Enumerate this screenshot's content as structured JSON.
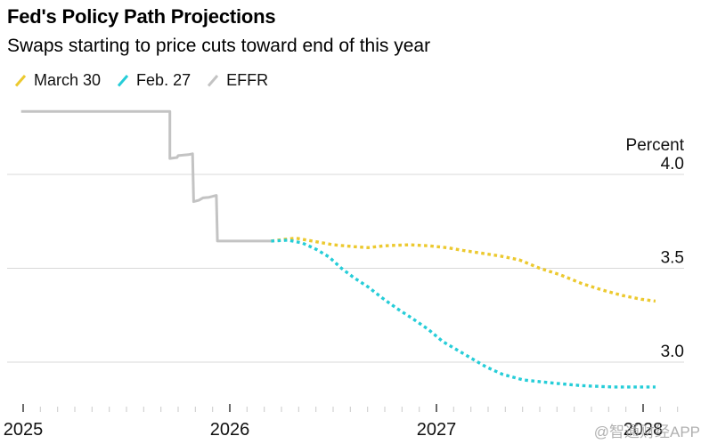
{
  "header": {
    "title": "Fed's Policy Path Projections",
    "subtitle": "Swaps starting to price cuts toward end of this year"
  },
  "legend": {
    "items": [
      {
        "label": "March 30",
        "color": "#ecc92f"
      },
      {
        "label": "Feb. 27",
        "color": "#26cdd8"
      },
      {
        "label": "EFFR",
        "color": "#c3c3c3"
      }
    ]
  },
  "watermark": "@智通财经APP",
  "colors": {
    "march30": "#ecc92f",
    "feb27": "#26cdd8",
    "effr": "#c3c3c3",
    "gridline": "#d8d8d8",
    "major_tick": "#3a3a3a",
    "minor_tick": "#c9c9c9",
    "axis_text": "#111111"
  },
  "chart_data": {
    "type": "line",
    "title": "Fed's Policy Path Projections",
    "subtitle": "Swaps starting to price cuts toward end of this year",
    "x_axis": {
      "unit": "year",
      "major_ticks": [
        2025,
        2026,
        2027,
        2028
      ],
      "minor_tick_interval_months": 1,
      "minor_tick_count": 39,
      "range": [
        2025,
        2028.2
      ]
    },
    "y_axis": {
      "label": "Percent",
      "ticks": [
        4.0,
        3.5,
        3.0
      ],
      "range": [
        2.75,
        4.45
      ],
      "labels_side": "right",
      "gridlines": true
    },
    "legend_position": "top-left",
    "series": [
      {
        "name": "EFFR",
        "style": "solid",
        "color": "#c3c3c3",
        "points": [
          [
            2024.99,
            4.335
          ],
          [
            2025.71,
            4.335
          ],
          [
            2025.71,
            4.085
          ],
          [
            2025.745,
            4.09
          ],
          [
            2025.75,
            4.1
          ],
          [
            2025.8,
            4.105
          ],
          [
            2025.82,
            4.11
          ],
          [
            2025.825,
            3.855
          ],
          [
            2025.85,
            3.862
          ],
          [
            2025.87,
            3.875
          ],
          [
            2025.9,
            3.878
          ],
          [
            2025.935,
            3.888
          ],
          [
            2025.94,
            3.645
          ],
          [
            2026.2,
            3.645
          ]
        ]
      },
      {
        "name": "March 30",
        "style": "dotted",
        "color": "#ecc92f",
        "points": [
          [
            2026.2,
            3.645
          ],
          [
            2026.27,
            3.655
          ],
          [
            2026.32,
            3.66
          ],
          [
            2026.4,
            3.645
          ],
          [
            2026.5,
            3.625
          ],
          [
            2026.6,
            3.615
          ],
          [
            2026.67,
            3.61
          ],
          [
            2026.75,
            3.62
          ],
          [
            2026.87,
            3.625
          ],
          [
            2026.96,
            3.62
          ],
          [
            2027.05,
            3.61
          ],
          [
            2027.13,
            3.595
          ],
          [
            2027.22,
            3.58
          ],
          [
            2027.31,
            3.565
          ],
          [
            2027.4,
            3.545
          ],
          [
            2027.5,
            3.5
          ],
          [
            2027.6,
            3.465
          ],
          [
            2027.7,
            3.42
          ],
          [
            2027.8,
            3.385
          ],
          [
            2027.9,
            3.355
          ],
          [
            2027.99,
            3.335
          ],
          [
            2028.06,
            3.325
          ]
        ]
      },
      {
        "name": "Feb. 27",
        "style": "dotted",
        "color": "#26cdd8",
        "points": [
          [
            2026.2,
            3.645
          ],
          [
            2026.28,
            3.65
          ],
          [
            2026.35,
            3.635
          ],
          [
            2026.42,
            3.6
          ],
          [
            2026.48,
            3.56
          ],
          [
            2026.54,
            3.5
          ],
          [
            2026.6,
            3.45
          ],
          [
            2026.67,
            3.4
          ],
          [
            2026.74,
            3.34
          ],
          [
            2026.81,
            3.285
          ],
          [
            2026.88,
            3.235
          ],
          [
            2026.96,
            3.175
          ],
          [
            2027.03,
            3.11
          ],
          [
            2027.1,
            3.065
          ],
          [
            2027.17,
            3.02
          ],
          [
            2027.24,
            2.975
          ],
          [
            2027.32,
            2.935
          ],
          [
            2027.42,
            2.905
          ],
          [
            2027.55,
            2.89
          ],
          [
            2027.7,
            2.875
          ],
          [
            2027.85,
            2.868
          ],
          [
            2028.06,
            2.868
          ]
        ]
      }
    ]
  }
}
